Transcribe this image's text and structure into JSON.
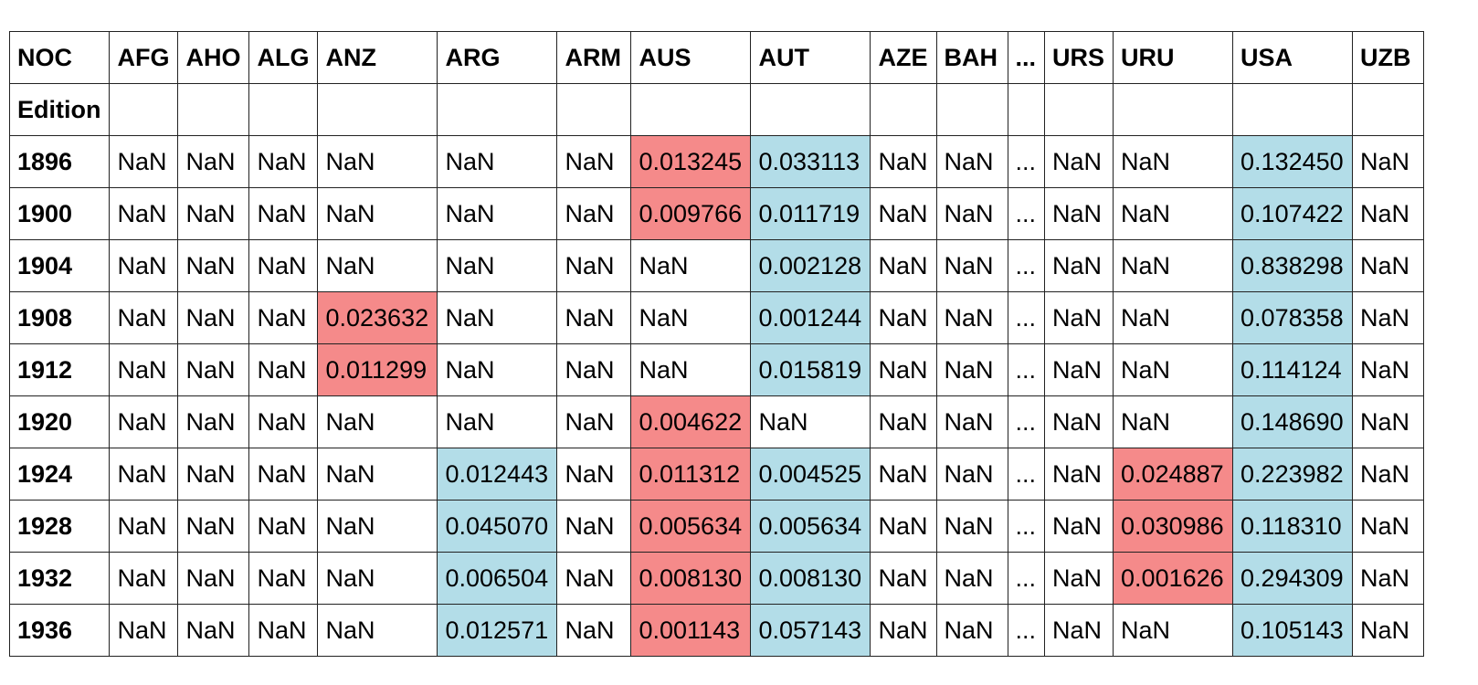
{
  "table": {
    "columns": [
      "NOC",
      "AFG",
      "AHO",
      "ALG",
      "ANZ",
      "ARG",
      "ARM",
      "AUS",
      "AUT",
      "AZE",
      "BAH",
      "...",
      "URS",
      "URU",
      "USA",
      "UZB"
    ],
    "index_name": "Edition",
    "rows": [
      {
        "edition": "1896",
        "cells": [
          "NaN",
          "NaN",
          "NaN",
          "NaN",
          "NaN",
          "NaN",
          "0.013245",
          "0.033113",
          "NaN",
          "NaN",
          "...",
          "NaN",
          "NaN",
          "0.132450",
          "NaN"
        ],
        "hl": [
          "",
          "",
          "",
          "",
          "",
          "",
          "r",
          "b",
          "",
          "",
          "",
          "",
          "",
          "b",
          ""
        ]
      },
      {
        "edition": "1900",
        "cells": [
          "NaN",
          "NaN",
          "NaN",
          "NaN",
          "NaN",
          "NaN",
          "0.009766",
          "0.011719",
          "NaN",
          "NaN",
          "...",
          "NaN",
          "NaN",
          "0.107422",
          "NaN"
        ],
        "hl": [
          "",
          "",
          "",
          "",
          "",
          "",
          "r",
          "b",
          "",
          "",
          "",
          "",
          "",
          "b",
          ""
        ]
      },
      {
        "edition": "1904",
        "cells": [
          "NaN",
          "NaN",
          "NaN",
          "NaN",
          "NaN",
          "NaN",
          "NaN",
          "0.002128",
          "NaN",
          "NaN",
          "...",
          "NaN",
          "NaN",
          "0.838298",
          "NaN"
        ],
        "hl": [
          "",
          "",
          "",
          "",
          "",
          "",
          "",
          "b",
          "",
          "",
          "",
          "",
          "",
          "b",
          ""
        ]
      },
      {
        "edition": "1908",
        "cells": [
          "NaN",
          "NaN",
          "NaN",
          "0.023632",
          "NaN",
          "NaN",
          "NaN",
          "0.001244",
          "NaN",
          "NaN",
          "...",
          "NaN",
          "NaN",
          "0.078358",
          "NaN"
        ],
        "hl": [
          "",
          "",
          "",
          "r",
          "",
          "",
          "",
          "b",
          "",
          "",
          "",
          "",
          "",
          "b",
          ""
        ]
      },
      {
        "edition": "1912",
        "cells": [
          "NaN",
          "NaN",
          "NaN",
          "0.011299",
          "NaN",
          "NaN",
          "NaN",
          "0.015819",
          "NaN",
          "NaN",
          "...",
          "NaN",
          "NaN",
          "0.114124",
          "NaN"
        ],
        "hl": [
          "",
          "",
          "",
          "r",
          "",
          "",
          "",
          "b",
          "",
          "",
          "",
          "",
          "",
          "b",
          ""
        ]
      },
      {
        "edition": "1920",
        "cells": [
          "NaN",
          "NaN",
          "NaN",
          "NaN",
          "NaN",
          "NaN",
          "0.004622",
          "NaN",
          "NaN",
          "NaN",
          "...",
          "NaN",
          "NaN",
          "0.148690",
          "NaN"
        ],
        "hl": [
          "",
          "",
          "",
          "",
          "",
          "",
          "r",
          "",
          "",
          "",
          "",
          "",
          "",
          "b",
          ""
        ]
      },
      {
        "edition": "1924",
        "cells": [
          "NaN",
          "NaN",
          "NaN",
          "NaN",
          "0.012443",
          "NaN",
          "0.011312",
          "0.004525",
          "NaN",
          "NaN",
          "...",
          "NaN",
          "0.024887",
          "0.223982",
          "NaN"
        ],
        "hl": [
          "",
          "",
          "",
          "",
          "b",
          "",
          "r",
          "b",
          "",
          "",
          "",
          "",
          "r",
          "b",
          ""
        ]
      },
      {
        "edition": "1928",
        "cells": [
          "NaN",
          "NaN",
          "NaN",
          "NaN",
          "0.045070",
          "NaN",
          "0.005634",
          "0.005634",
          "NaN",
          "NaN",
          "...",
          "NaN",
          "0.030986",
          "0.118310",
          "NaN"
        ],
        "hl": [
          "",
          "",
          "",
          "",
          "b",
          "",
          "r",
          "b",
          "",
          "",
          "",
          "",
          "r",
          "b",
          ""
        ]
      },
      {
        "edition": "1932",
        "cells": [
          "NaN",
          "NaN",
          "NaN",
          "NaN",
          "0.006504",
          "NaN",
          "0.008130",
          "0.008130",
          "NaN",
          "NaN",
          "...",
          "NaN",
          "0.001626",
          "0.294309",
          "NaN"
        ],
        "hl": [
          "",
          "",
          "",
          "",
          "b",
          "",
          "r",
          "b",
          "",
          "",
          "",
          "",
          "r",
          "b",
          ""
        ]
      },
      {
        "edition": "1936",
        "cells": [
          "NaN",
          "NaN",
          "NaN",
          "NaN",
          "0.012571",
          "NaN",
          "0.001143",
          "0.057143",
          "NaN",
          "NaN",
          "...",
          "NaN",
          "NaN",
          "0.105143",
          "NaN"
        ],
        "hl": [
          "",
          "",
          "",
          "",
          "b",
          "",
          "r",
          "b",
          "",
          "",
          "",
          "",
          "",
          "b",
          ""
        ]
      }
    ],
    "colors": {
      "red": "#f58a8a",
      "blue": "#b3dde8"
    }
  }
}
